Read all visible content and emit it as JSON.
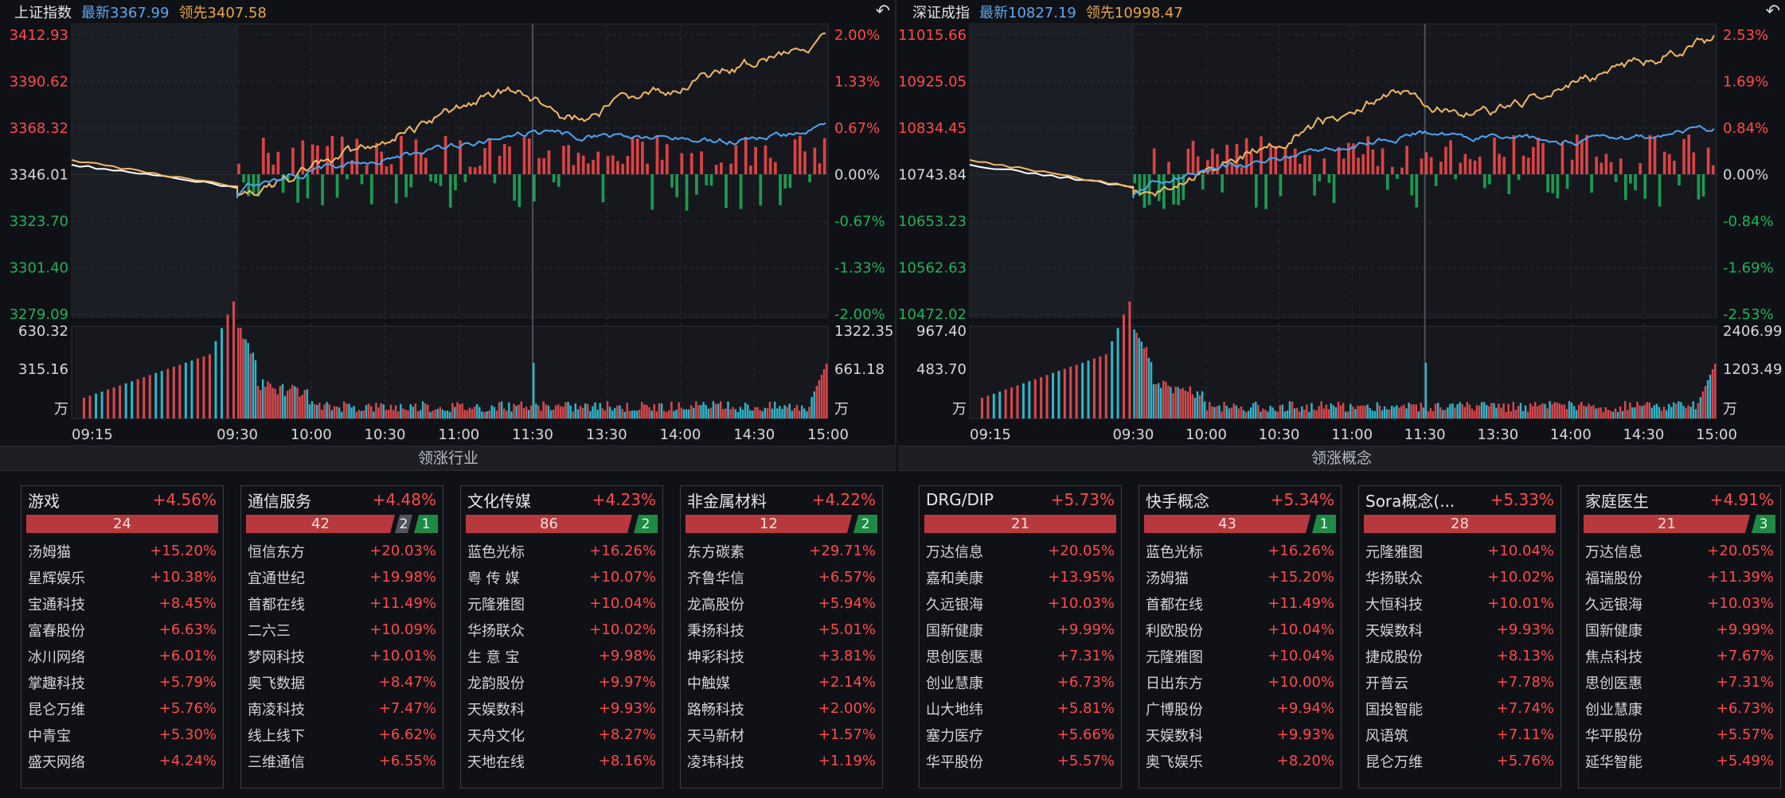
{
  "left": {
    "name": "上证指数",
    "latest": "最新3367.99",
    "lead": "领先3407.58",
    "price_labels": [
      "3412.93",
      "3390.62",
      "3368.32",
      "3346.01",
      "3323.70",
      "3301.40",
      "3279.09"
    ],
    "pct_labels": [
      "2.00%",
      "1.33%",
      "0.67%",
      "0.00%",
      "-0.67%",
      "-1.33%",
      "-2.00%"
    ],
    "vol_left": [
      "630.32",
      "315.16",
      "万"
    ],
    "vol_right": [
      "1322.35",
      "661.18",
      "万"
    ],
    "time_labels": [
      "09:15",
      "09:30",
      "10:00",
      "10:30",
      "11:00",
      "11:30",
      "13:30",
      "14:00",
      "14:30",
      "15:00"
    ],
    "section": "领涨行业",
    "cards": [
      {
        "name": "游戏",
        "pct": "+4.56%",
        "up": "24",
        "flat": "",
        "down": "",
        "stocks": [
          [
            "汤姆猫",
            "+15.20%"
          ],
          [
            "星辉娱乐",
            "+10.38%"
          ],
          [
            "宝通科技",
            "+8.45%"
          ],
          [
            "富春股份",
            "+6.63%"
          ],
          [
            "冰川网络",
            "+6.01%"
          ],
          [
            "掌趣科技",
            "+5.79%"
          ],
          [
            "昆仑万维",
            "+5.76%"
          ],
          [
            "中青宝",
            "+5.30%"
          ],
          [
            "盛天网络",
            "+4.24%"
          ]
        ]
      },
      {
        "name": "通信服务",
        "pct": "+4.48%",
        "up": "42",
        "flat": "2",
        "down": "1",
        "stocks": [
          [
            "恒信东方",
            "+20.03%"
          ],
          [
            "宜通世纪",
            "+19.98%"
          ],
          [
            "首都在线",
            "+11.49%"
          ],
          [
            "二六三",
            "+10.09%"
          ],
          [
            "梦网科技",
            "+10.01%"
          ],
          [
            "奥飞数据",
            "+8.47%"
          ],
          [
            "南凌科技",
            "+7.47%"
          ],
          [
            "线上线下",
            "+6.62%"
          ],
          [
            "三维通信",
            "+6.55%"
          ]
        ]
      },
      {
        "name": "文化传媒",
        "pct": "+4.23%",
        "up": "86",
        "flat": "",
        "down": "2",
        "stocks": [
          [
            "蓝色光标",
            "+16.26%"
          ],
          [
            "粤 传 媒",
            "+10.07%"
          ],
          [
            "元隆雅图",
            "+10.04%"
          ],
          [
            "华扬联众",
            "+10.02%"
          ],
          [
            "生 意 宝",
            "+9.98%"
          ],
          [
            "龙韵股份",
            "+9.97%"
          ],
          [
            "天娱数科",
            "+9.93%"
          ],
          [
            "天舟文化",
            "+8.27%"
          ],
          [
            "天地在线",
            "+8.16%"
          ]
        ]
      },
      {
        "name": "非金属材料",
        "pct": "+4.22%",
        "up": "12",
        "flat": "",
        "down": "2",
        "stocks": [
          [
            "东方碳素",
            "+29.71%"
          ],
          [
            "齐鲁华信",
            "+6.57%"
          ],
          [
            "龙高股份",
            "+5.94%"
          ],
          [
            "秉扬科技",
            "+5.01%"
          ],
          [
            "坤彩科技",
            "+3.81%"
          ],
          [
            "中触媒",
            "+2.14%"
          ],
          [
            "路畅科技",
            "+2.00%"
          ],
          [
            "天马新材",
            "+1.57%"
          ],
          [
            "凌玮科技",
            "+1.19%"
          ]
        ]
      }
    ]
  },
  "right": {
    "name": "深证成指",
    "latest": "最新10827.19",
    "lead": "领先10998.47",
    "price_labels": [
      "11015.66",
      "10925.05",
      "10834.45",
      "10743.84",
      "10653.23",
      "10562.63",
      "10472.02"
    ],
    "pct_labels": [
      "2.53%",
      "1.69%",
      "0.84%",
      "0.00%",
      "-0.84%",
      "-1.69%",
      "-2.53%"
    ],
    "vol_left": [
      "967.40",
      "483.70",
      "万"
    ],
    "vol_right": [
      "2406.99",
      "1203.49",
      "万"
    ],
    "time_labels": [
      "09:15",
      "09:30",
      "10:00",
      "10:30",
      "11:00",
      "11:30",
      "13:30",
      "14:00",
      "14:30",
      "15:00"
    ],
    "section": "领涨概念",
    "cards": [
      {
        "name": "DRG/DIP",
        "pct": "+5.73%",
        "up": "21",
        "flat": "",
        "down": "",
        "stocks": [
          [
            "万达信息",
            "+20.05%"
          ],
          [
            "嘉和美康",
            "+13.95%"
          ],
          [
            "久远银海",
            "+10.03%"
          ],
          [
            "国新健康",
            "+9.99%"
          ],
          [
            "思创医惠",
            "+7.31%"
          ],
          [
            "创业慧康",
            "+6.73%"
          ],
          [
            "山大地纬",
            "+5.81%"
          ],
          [
            "塞力医疗",
            "+5.66%"
          ],
          [
            "华平股份",
            "+5.57%"
          ]
        ]
      },
      {
        "name": "快手概念",
        "pct": "+5.34%",
        "up": "43",
        "flat": "",
        "down": "1",
        "stocks": [
          [
            "蓝色光标",
            "+16.26%"
          ],
          [
            "汤姆猫",
            "+15.20%"
          ],
          [
            "首都在线",
            "+11.49%"
          ],
          [
            "利欧股份",
            "+10.04%"
          ],
          [
            "元隆雅图",
            "+10.04%"
          ],
          [
            "日出东方",
            "+10.00%"
          ],
          [
            "广博股份",
            "+9.94%"
          ],
          [
            "天娱数科",
            "+9.93%"
          ],
          [
            "奥飞娱乐",
            "+8.20%"
          ]
        ]
      },
      {
        "name": "Sora概念(...",
        "pct": "+5.33%",
        "up": "28",
        "flat": "",
        "down": "",
        "stocks": [
          [
            "元隆雅图",
            "+10.04%"
          ],
          [
            "华扬联众",
            "+10.02%"
          ],
          [
            "大恒科技",
            "+10.01%"
          ],
          [
            "天娱数科",
            "+9.93%"
          ],
          [
            "捷成股份",
            "+8.13%"
          ],
          [
            "开普云",
            "+7.78%"
          ],
          [
            "国投智能",
            "+7.74%"
          ],
          [
            "风语筑",
            "+7.11%"
          ],
          [
            "昆仑万维",
            "+5.76%"
          ]
        ]
      },
      {
        "name": "家庭医生",
        "pct": "+4.91%",
        "up": "21",
        "flat": "",
        "down": "3",
        "stocks": [
          [
            "万达信息",
            "+20.05%"
          ],
          [
            "福瑞股份",
            "+11.39%"
          ],
          [
            "久远银海",
            "+10.03%"
          ],
          [
            "国新健康",
            "+9.99%"
          ],
          [
            "焦点科技",
            "+7.67%"
          ],
          [
            "思创医惠",
            "+7.31%"
          ],
          [
            "创业慧康",
            "+6.73%"
          ],
          [
            "华平股份",
            "+5.57%"
          ],
          [
            "延华智能",
            "+5.49%"
          ]
        ]
      }
    ]
  },
  "colors": {
    "up": "#ff4a4a",
    "down": "#1fb259",
    "index_line": "#f2b766",
    "avg_line": "#4ea4f0",
    "white_line": "#ffffff"
  },
  "icons": {
    "back": "undo-arrow-icon"
  }
}
